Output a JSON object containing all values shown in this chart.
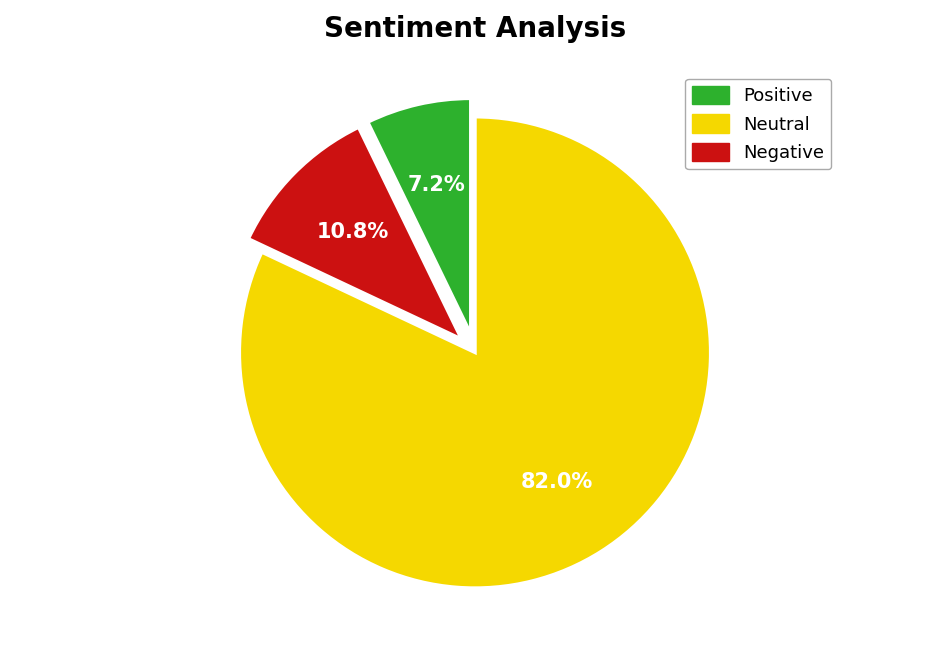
{
  "title": "Sentiment Analysis",
  "labels": [
    "Neutral",
    "Negative",
    "Positive"
  ],
  "values": [
    82.0,
    10.8,
    7.2
  ],
  "colors": [
    "#f5d800",
    "#cc1111",
    "#2db12d"
  ],
  "explode": [
    0.0,
    0.08,
    0.08
  ],
  "autopct_colors": [
    "white",
    "white",
    "white"
  ],
  "title_fontsize": 20,
  "legend_fontsize": 13,
  "pct_fontsize": 15,
  "background_color": "#ffffff",
  "startangle": 90,
  "wedge_linewidth": 2.5,
  "wedge_edgecolor": "white",
  "pctdistance": 0.65,
  "legend_labels": [
    "Positive",
    "Neutral",
    "Negative"
  ],
  "legend_colors": [
    "#2db12d",
    "#f5d800",
    "#cc1111"
  ]
}
